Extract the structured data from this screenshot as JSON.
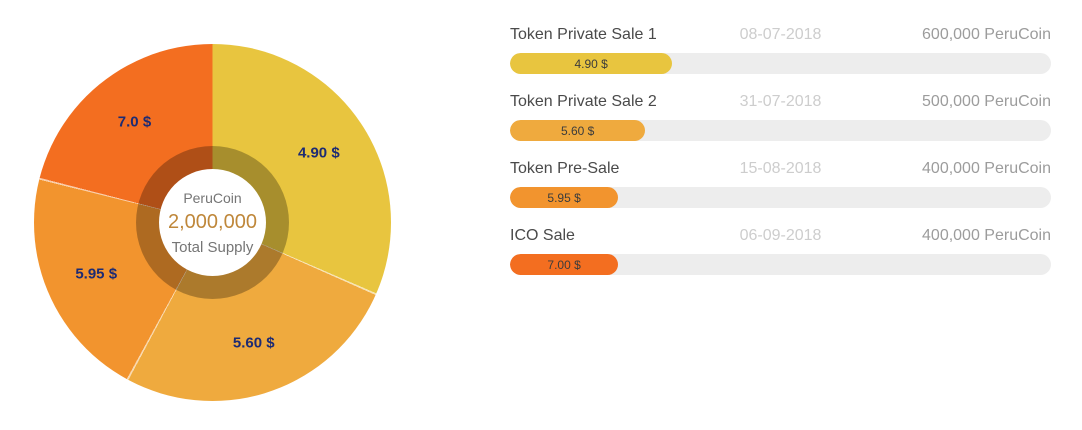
{
  "donut": {
    "center": {
      "coin": "PeruCoin",
      "supply": "2,000,000",
      "caption": "Total Supply"
    }
  },
  "sales": [
    {
      "name": "Token Private Sale 1",
      "date": "08-07-2018",
      "amount": "600,000 PeruCoin",
      "tokens": 600000,
      "price_label": "4.90 $",
      "pie_label": "4.90 $",
      "fill_pct": 30,
      "color": "#e8c53f"
    },
    {
      "name": "Token Private Sale 2",
      "date": "31-07-2018",
      "amount": "500,000 PeruCoin",
      "tokens": 500000,
      "price_label": "5.60 $",
      "pie_label": "5.60 $",
      "fill_pct": 25,
      "color": "#efaa3e"
    },
    {
      "name": "Token Pre-Sale",
      "date": "15-08-2018",
      "amount": "400,000 PeruCoin",
      "tokens": 400000,
      "price_label": "5.95 $",
      "pie_label": "5.95 $",
      "fill_pct": 20,
      "color": "#f2942e"
    },
    {
      "name": "ICO Sale",
      "date": "06-09-2018",
      "amount": "400,000 PeruCoin",
      "tokens": 400000,
      "price_label": "7.00 $",
      "pie_label": "7.0 $",
      "fill_pct": 20,
      "color": "#f36e20"
    }
  ],
  "colors": {
    "slice_label": "#1d2b73",
    "supply_number": "#bf873a",
    "center_gray": "#757575",
    "stage_name": "#4a4a4a",
    "stage_date": "#cdcdcd",
    "stage_amount": "#9c9c9c",
    "bar_track": "#ededed",
    "bar_label": "#3c3c3c",
    "ring_overlay": "rgba(0,0,0,0.28)"
  },
  "chart_data": {
    "type": "pie",
    "title": "PeruCoin token sale stages — price per stage donut with stage progress bars",
    "donut": true,
    "center_text": [
      "PeruCoin",
      "2,000,000",
      "Total Supply"
    ],
    "total_supply": 2000000,
    "legend_position": "none",
    "slices": [
      {
        "label": "4.90 $",
        "stage": "Token Private Sale 1",
        "date": "08-07-2018",
        "tokens": 600000,
        "fraction_of_pie": 0.316,
        "color": "#e8c53f"
      },
      {
        "label": "5.60 $",
        "stage": "Token Private Sale 2",
        "date": "31-07-2018",
        "tokens": 500000,
        "fraction_of_pie": 0.263,
        "color": "#efaa3e"
      },
      {
        "label": "5.95 $",
        "stage": "Token Pre-Sale",
        "date": "15-08-2018",
        "tokens": 400000,
        "fraction_of_pie": 0.211,
        "color": "#f2942e"
      },
      {
        "label": "7.0 $",
        "stage": "ICO Sale",
        "date": "06-09-2018",
        "tokens": 400000,
        "fraction_of_pie": 0.211,
        "color": "#f36e20"
      }
    ],
    "progress_bars": [
      {
        "stage": "Token Private Sale 1",
        "label": "4.90 $",
        "price_usd": 4.9,
        "fill_fraction": 0.3
      },
      {
        "stage": "Token Private Sale 2",
        "label": "5.60 $",
        "price_usd": 5.6,
        "fill_fraction": 0.25
      },
      {
        "stage": "Token Pre-Sale",
        "label": "5.95 $",
        "price_usd": 5.95,
        "fill_fraction": 0.2
      },
      {
        "stage": "ICO Sale",
        "label": "7.00 $",
        "price_usd": 7.0,
        "fill_fraction": 0.2
      }
    ]
  }
}
